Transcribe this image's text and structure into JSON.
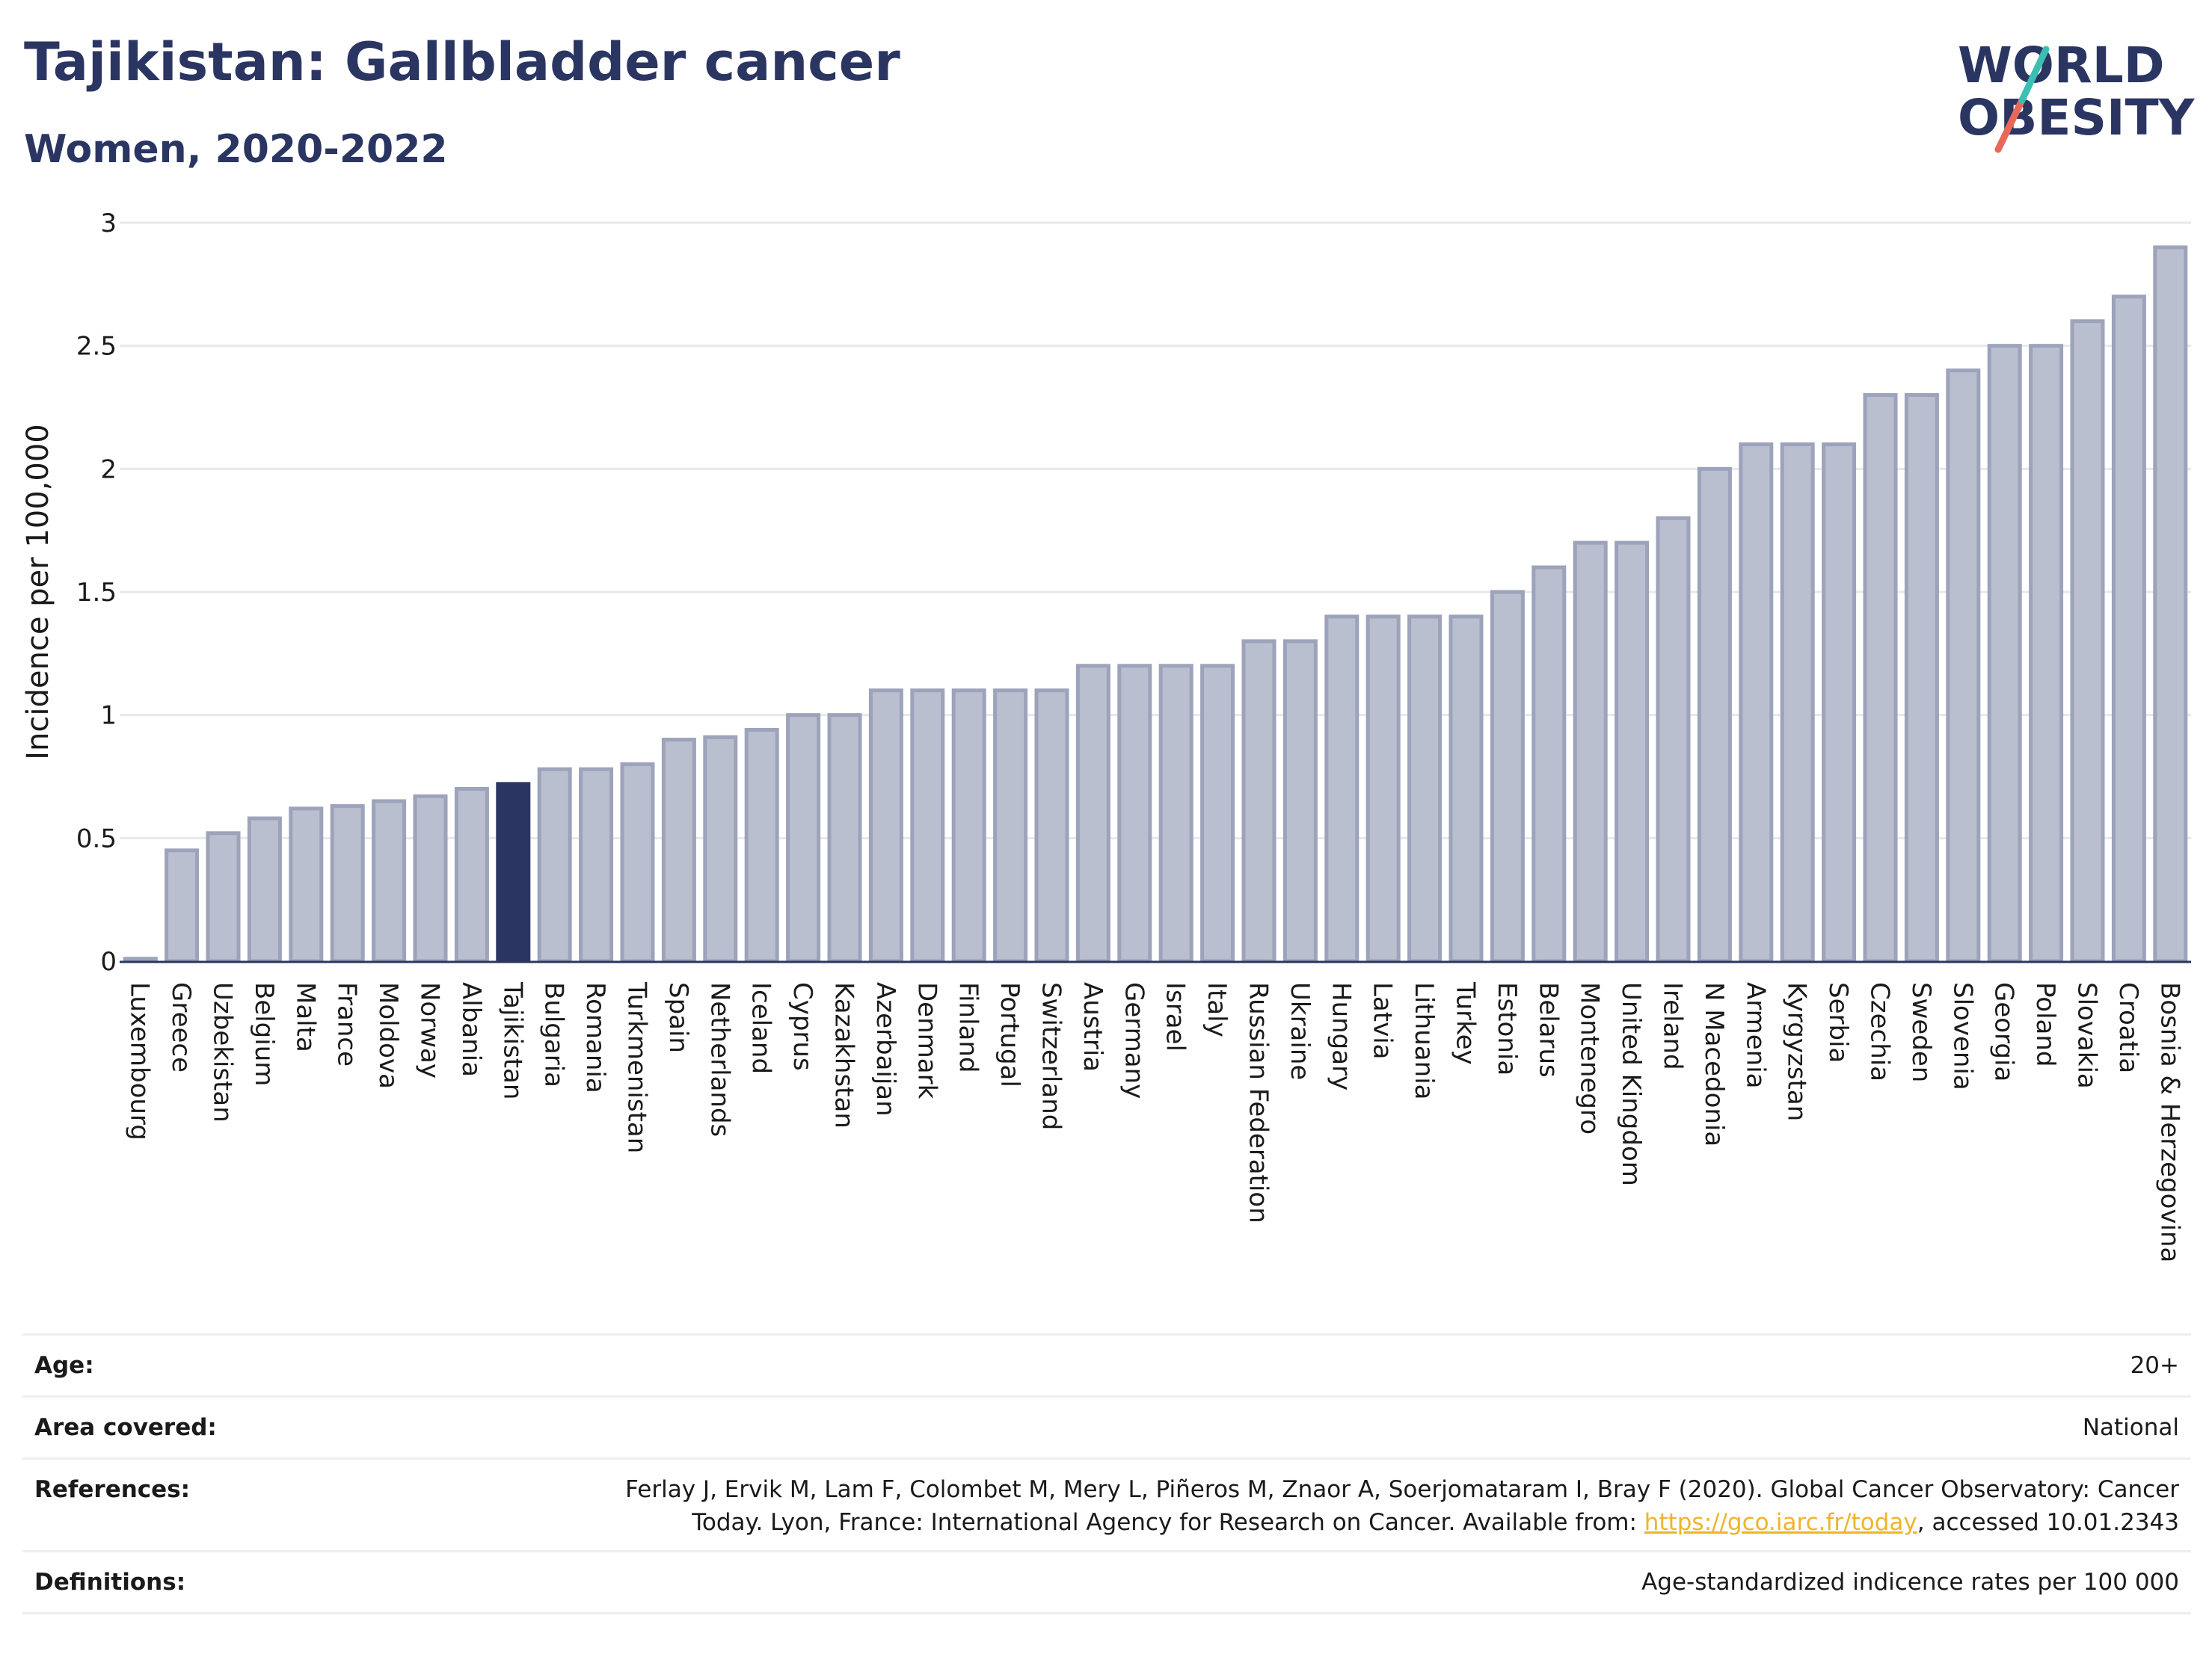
{
  "title": "Tajikistan: Gallbladder cancer",
  "subtitle": "Women, 2020-2022",
  "logo": {
    "line1": "WORLD",
    "line2": "OBESITY"
  },
  "colors": {
    "title": "#2a3562",
    "bar": "#b9bfcf",
    "bar_stroke": "#9ca3ba",
    "highlight": "#2a3562",
    "grid": "#e6e8ee",
    "link": "#f0b429",
    "logo_teal": "#3bbfb3",
    "logo_red": "#e8685a"
  },
  "chart_data": {
    "type": "bar",
    "xlabel": "",
    "ylabel": "Incidence per 100,000",
    "ylim": [
      0,
      3
    ],
    "yticks": [
      "0",
      "0.5",
      "1",
      "1.5",
      "2",
      "2.5",
      "3"
    ],
    "grid": true,
    "highlight": "Tajikistan",
    "categories": [
      "Luxembourg",
      "Greece",
      "Uzbekistan",
      "Belgium",
      "Malta",
      "France",
      "Moldova",
      "Norway",
      "Albania",
      "Tajikistan",
      "Bulgaria",
      "Romania",
      "Turkmenistan",
      "Spain",
      "Netherlands",
      "Iceland",
      "Cyprus",
      "Kazakhstan",
      "Azerbaijan",
      "Denmark",
      "Finland",
      "Portugal",
      "Switzerland",
      "Austria",
      "Germany",
      "Israel",
      "Italy",
      "Russian Federation",
      "Ukraine",
      "Hungary",
      "Latvia",
      "Lithuania",
      "Turkey",
      "Estonia",
      "Belarus",
      "Montenegro",
      "United Kingdom",
      "Ireland",
      "N Macedonia",
      "Armenia",
      "Kyrgyzstan",
      "Serbia",
      "Czechia",
      "Sweden",
      "Slovenia",
      "Georgia",
      "Poland",
      "Slovakia",
      "Croatia",
      "Bosnia & Herzegovina"
    ],
    "values": [
      0.01,
      0.45,
      0.52,
      0.58,
      0.62,
      0.63,
      0.65,
      0.67,
      0.7,
      0.72,
      0.78,
      0.78,
      0.8,
      0.9,
      0.91,
      0.94,
      1.0,
      1.0,
      1.1,
      1.1,
      1.1,
      1.1,
      1.1,
      1.2,
      1.2,
      1.2,
      1.2,
      1.3,
      1.3,
      1.4,
      1.4,
      1.4,
      1.4,
      1.5,
      1.6,
      1.7,
      1.7,
      1.8,
      2.0,
      2.1,
      2.1,
      2.1,
      2.3,
      2.3,
      2.4,
      2.5,
      2.5,
      2.6,
      2.7,
      2.9
    ]
  },
  "meta": {
    "age_label": "Age:",
    "age_value": "20+",
    "area_label": "Area covered:",
    "area_value": "National",
    "references_label": "References:",
    "references_text_1": "Ferlay J, Ervik M, Lam F, Colombet M, Mery L, Piñeros M, Znaor A, Soerjomataram I, Bray F (2020). Global Cancer Observatory: Cancer",
    "references_text_2": "Today. Lyon, France: International Agency for Research on Cancer. Available from: ",
    "references_link": "https://gco.iarc.fr/today",
    "references_text_3": ", accessed 10.01.2343",
    "definitions_label": "Definitions:",
    "definitions_value": "Age-standardized indicence rates per 100 000"
  }
}
